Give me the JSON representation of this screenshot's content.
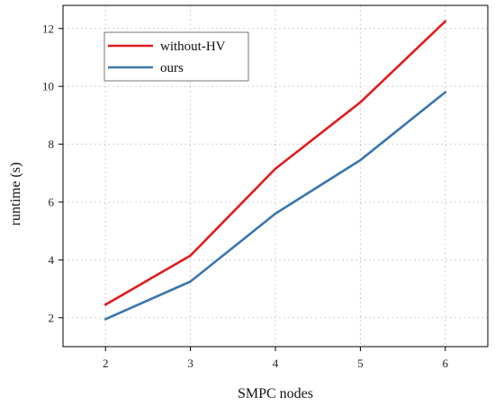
{
  "chart_data": {
    "type": "line",
    "title": "",
    "xlabel": "SMPC nodes",
    "ylabel": "runtime (s)",
    "x": [
      2,
      3,
      4,
      5,
      6
    ],
    "xlim": [
      1.5,
      6.5
    ],
    "ylim": [
      1.0,
      12.8
    ],
    "xticks": [
      2,
      3,
      4,
      5,
      6
    ],
    "yticks": [
      2,
      4,
      6,
      8,
      10,
      12
    ],
    "grid": true,
    "legend_position": "top-left",
    "series": [
      {
        "name": "without-HV",
        "color": "#e31a1c",
        "values": [
          2.45,
          4.15,
          7.15,
          9.45,
          12.25
        ]
      },
      {
        "name": "ours",
        "color": "#3a76af",
        "values": [
          1.95,
          3.25,
          5.6,
          7.45,
          9.8
        ]
      }
    ]
  }
}
